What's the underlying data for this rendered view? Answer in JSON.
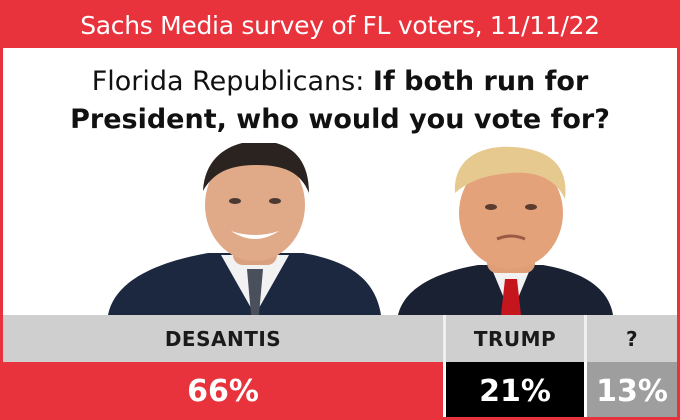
{
  "header": {
    "title": "Sachs Media survey of FL voters, 11/11/22"
  },
  "question": {
    "prefix": "Florida Republicans: ",
    "bold_line1": "If both run for",
    "bold_line2": "President, who would you vote for?"
  },
  "chart_data": {
    "type": "table",
    "title": "Florida Republicans: If both run for President, who would you vote for?",
    "categories": [
      "DESANTIS",
      "TRUMP",
      "?"
    ],
    "values": [
      66,
      21,
      13
    ],
    "value_labels": [
      "66%",
      "21%",
      "13%"
    ],
    "colors": [
      "#e8323c",
      "#000000",
      "#9e9e9e"
    ]
  },
  "photos": [
    "DeSantis portrait",
    "Trump portrait"
  ]
}
